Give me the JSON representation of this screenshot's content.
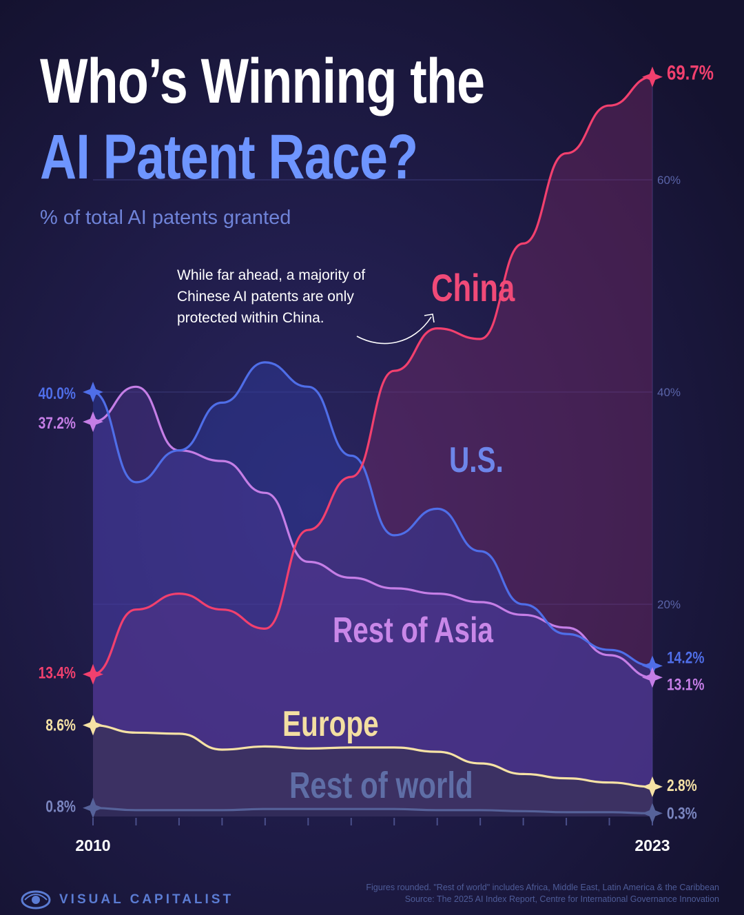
{
  "title": {
    "line1": "Who’s Winning the",
    "line2": "AI Patent Race?",
    "subtitle": "% of total AI patents granted"
  },
  "annotation": {
    "line1": "While far ahead, a majority of",
    "line2": "Chinese AI patents are only",
    "line3": "protected within China."
  },
  "colors": {
    "background": "#1b1840",
    "china": "#f2406e",
    "us": "#4f6ee8",
    "rest_of_asia": "#c57ee6",
    "europe": "#f6e2a5",
    "rest_of_world": "#56629a",
    "title_accent": "#6e95ff"
  },
  "chart_data": {
    "type": "area",
    "title": "Who’s Winning the AI Patent Race?",
    "subtitle": "% of total AI patents granted",
    "x": [
      2010,
      2011,
      2012,
      2013,
      2014,
      2015,
      2016,
      2017,
      2018,
      2019,
      2020,
      2021,
      2022,
      2023
    ],
    "xticklabels": [
      "2010",
      "2023"
    ],
    "ylim": [
      0,
      72
    ],
    "yticks": [
      "20%",
      "40%",
      "60%"
    ],
    "grid": true,
    "series": [
      {
        "name": "China",
        "values": [
          13.4,
          19.5,
          21.0,
          19.5,
          17.7,
          27.0,
          32.0,
          42.0,
          46.0,
          45.0,
          54.0,
          62.5,
          67.0,
          69.7
        ],
        "start_label": "13.4%",
        "end_label": "69.7%"
      },
      {
        "name": "U.S.",
        "values": [
          40.0,
          31.5,
          34.5,
          39.0,
          42.8,
          40.5,
          34.0,
          26.5,
          29.0,
          25.0,
          20.0,
          17.2,
          15.7,
          14.2
        ],
        "start_label": "40.0%",
        "end_label": "14.2%"
      },
      {
        "name": "Rest of Asia",
        "values": [
          37.2,
          40.5,
          34.5,
          33.5,
          30.5,
          24.0,
          22.5,
          21.5,
          21.0,
          20.2,
          19.0,
          17.8,
          15.2,
          13.1
        ],
        "start_label": "37.2%",
        "end_label": "13.1%"
      },
      {
        "name": "Europe",
        "values": [
          8.6,
          7.9,
          7.8,
          6.3,
          6.6,
          6.4,
          6.5,
          6.5,
          6.1,
          5.0,
          4.0,
          3.6,
          3.2,
          2.8
        ],
        "start_label": "8.6%",
        "end_label": "2.8%"
      },
      {
        "name": "Rest of world",
        "values": [
          0.8,
          0.6,
          0.6,
          0.6,
          0.7,
          0.7,
          0.7,
          0.7,
          0.6,
          0.6,
          0.5,
          0.4,
          0.4,
          0.3
        ],
        "start_label": "0.8%",
        "end_label": "0.3%"
      }
    ]
  },
  "brand": {
    "name": "VISUAL CAPITALIST"
  },
  "footnote": {
    "line1": "Figures rounded. \"Rest of world\" includes Africa, Middle East, Latin America & the Caribbean",
    "line2": "Source: The 2025 AI Index Report, Centre for International Governance Innovation"
  }
}
